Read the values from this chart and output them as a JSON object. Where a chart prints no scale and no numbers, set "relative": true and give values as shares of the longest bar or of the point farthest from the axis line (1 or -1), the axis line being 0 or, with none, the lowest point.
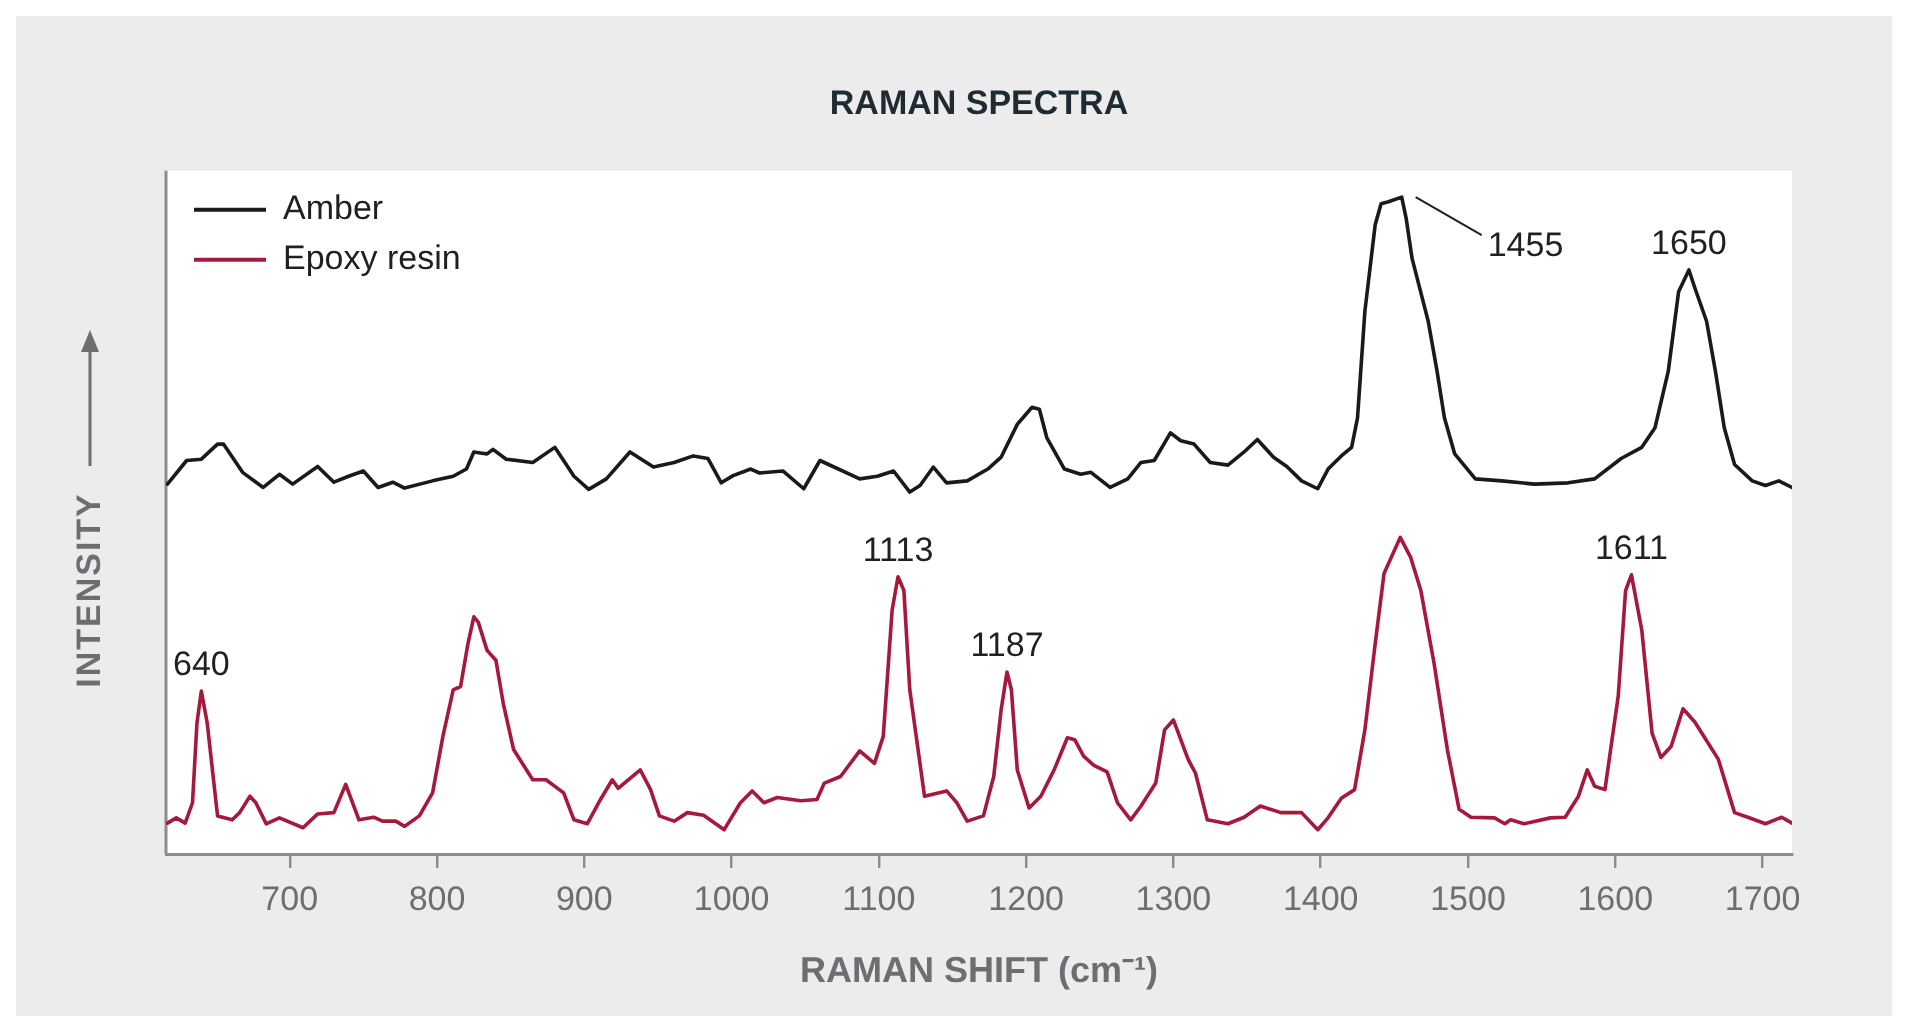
{
  "chart_data": {
    "type": "line",
    "title": "RAMAN SPECTRA",
    "xlabel": "RAMAN SHIFT (cm⁻¹)",
    "ylabel": "INTENSITY",
    "relative": true,
    "xlim": [
      616,
      1720
    ],
    "xticks": [
      700,
      800,
      900,
      1000,
      1100,
      1200,
      1300,
      1400,
      1500,
      1600,
      1700
    ],
    "legend": "top left",
    "marker": "none",
    "line_style": "solid",
    "series": [
      {
        "name": "Amber",
        "color": "#1a1a1a",
        "x": [
          617,
          630,
          640,
          651,
          655,
          668,
          682,
          693,
          702,
          719,
          730,
          740,
          750,
          760,
          770,
          778,
          797,
          811,
          820,
          825,
          834,
          838,
          847,
          865,
          880,
          893,
          903,
          915,
          931,
          947,
          961,
          974,
          984,
          993,
          1001,
          1013,
          1019,
          1035,
          1049,
          1060,
          1087,
          1099,
          1110,
          1121,
          1128,
          1137,
          1146,
          1160,
          1174,
          1183,
          1194,
          1204,
          1209,
          1214,
          1226,
          1237,
          1244,
          1257,
          1269,
          1278,
          1287,
          1298,
          1305,
          1314,
          1325,
          1337,
          1348,
          1357,
          1368,
          1377,
          1387,
          1398,
          1405,
          1414,
          1421,
          1425,
          1430,
          1437,
          1441,
          1446,
          1455,
          1458,
          1462,
          1466,
          1473,
          1479,
          1484,
          1491,
          1505,
          1523,
          1545,
          1568,
          1586,
          1604,
          1618,
          1627,
          1636,
          1643,
          1650,
          1654,
          1662,
          1668,
          1674,
          1681,
          1693,
          1702,
          1711,
          1720
        ],
        "values": [
          0.563,
          0.599,
          0.601,
          0.624,
          0.624,
          0.581,
          0.558,
          0.578,
          0.563,
          0.59,
          0.566,
          0.575,
          0.583,
          0.558,
          0.566,
          0.557,
          0.568,
          0.575,
          0.586,
          0.612,
          0.609,
          0.616,
          0.601,
          0.596,
          0.619,
          0.575,
          0.555,
          0.571,
          0.612,
          0.589,
          0.596,
          0.606,
          0.602,
          0.565,
          0.576,
          0.586,
          0.58,
          0.583,
          0.556,
          0.599,
          0.571,
          0.575,
          0.583,
          0.551,
          0.561,
          0.589,
          0.565,
          0.568,
          0.586,
          0.604,
          0.654,
          0.68,
          0.677,
          0.634,
          0.586,
          0.578,
          0.581,
          0.558,
          0.571,
          0.596,
          0.599,
          0.641,
          0.629,
          0.624,
          0.596,
          0.592,
          0.612,
          0.631,
          0.604,
          0.59,
          0.568,
          0.556,
          0.586,
          0.606,
          0.619,
          0.664,
          0.826,
          0.958,
          0.99,
          0.993,
          1,
          0.968,
          0.907,
          0.872,
          0.811,
          0.735,
          0.664,
          0.609,
          0.571,
          0.568,
          0.563,
          0.565,
          0.571,
          0.602,
          0.619,
          0.649,
          0.735,
          0.856,
          0.889,
          0.862,
          0.811,
          0.735,
          0.649,
          0.593,
          0.568,
          0.561,
          0.568,
          0.558
        ]
      },
      {
        "name": "Epoxy resin",
        "color": "#a6193c",
        "x": [
          617,
          623,
          629,
          634,
          637,
          640,
          644,
          651,
          661,
          666,
          673,
          677,
          684,
          693,
          709,
          719,
          730,
          738,
          747,
          757,
          763,
          772,
          778,
          788,
          797,
          804,
          811,
          816,
          821,
          825,
          828,
          834,
          840,
          845,
          852,
          865,
          874,
          886,
          893,
          902,
          911,
          919,
          923,
          938,
          945,
          951,
          961,
          970,
          981,
          995,
          1006,
          1014,
          1022,
          1031,
          1047,
          1058,
          1063,
          1074,
          1087,
          1097,
          1103,
          1109,
          1113,
          1117,
          1121,
          1131,
          1146,
          1153,
          1160,
          1171,
          1178,
          1183,
          1187,
          1190,
          1194,
          1202,
          1210,
          1219,
          1228,
          1233,
          1239,
          1246,
          1255,
          1262,
          1271,
          1278,
          1288,
          1294,
          1300,
          1310,
          1315,
          1323,
          1337,
          1348,
          1359,
          1373,
          1387,
          1398,
          1405,
          1414,
          1423,
          1430,
          1437,
          1443,
          1454,
          1461,
          1468,
          1477,
          1486,
          1494,
          1502,
          1518,
          1525,
          1529,
          1538,
          1556,
          1566,
          1575,
          1581,
          1586,
          1593,
          1602,
          1607,
          1611,
          1618,
          1625,
          1631,
          1638,
          1646,
          1654,
          1663,
          1670,
          1681,
          1690,
          1702,
          1713,
          1720
        ],
        "values": [
          0.047,
          0.055,
          0.047,
          0.078,
          0.199,
          0.248,
          0.199,
          0.058,
          0.052,
          0.063,
          0.088,
          0.078,
          0.046,
          0.055,
          0.04,
          0.061,
          0.063,
          0.106,
          0.052,
          0.056,
          0.05,
          0.05,
          0.042,
          0.058,
          0.093,
          0.179,
          0.25,
          0.255,
          0.32,
          0.361,
          0.353,
          0.31,
          0.295,
          0.229,
          0.159,
          0.113,
          0.113,
          0.093,
          0.052,
          0.046,
          0.083,
          0.113,
          0.1,
          0.128,
          0.098,
          0.058,
          0.05,
          0.063,
          0.059,
          0.037,
          0.078,
          0.096,
          0.078,
          0.086,
          0.081,
          0.083,
          0.108,
          0.118,
          0.157,
          0.138,
          0.179,
          0.371,
          0.422,
          0.401,
          0.25,
          0.088,
          0.096,
          0.078,
          0.05,
          0.058,
          0.118,
          0.219,
          0.277,
          0.25,
          0.128,
          0.07,
          0.088,
          0.128,
          0.177,
          0.174,
          0.149,
          0.135,
          0.125,
          0.078,
          0.052,
          0.073,
          0.108,
          0.189,
          0.204,
          0.144,
          0.123,
          0.052,
          0.046,
          0.056,
          0.073,
          0.063,
          0.063,
          0.037,
          0.055,
          0.085,
          0.098,
          0.189,
          0.32,
          0.427,
          0.482,
          0.452,
          0.401,
          0.29,
          0.159,
          0.068,
          0.056,
          0.055,
          0.046,
          0.052,
          0.046,
          0.055,
          0.056,
          0.088,
          0.128,
          0.103,
          0.098,
          0.24,
          0.401,
          0.425,
          0.341,
          0.184,
          0.147,
          0.164,
          0.221,
          0.201,
          0.169,
          0.144,
          0.063,
          0.056,
          0.046,
          0.056,
          0.047
        ]
      }
    ],
    "annotations": [
      {
        "text": "1455",
        "x": 1455,
        "y": 1
      },
      {
        "text": "1650",
        "x": 1650,
        "y": 0.889
      },
      {
        "text": "640",
        "x": 640,
        "y": 0.248
      },
      {
        "text": "1113",
        "x": 1113,
        "y": 0.422
      },
      {
        "text": "1187",
        "x": 1187,
        "y": 0.277
      },
      {
        "text": "1611",
        "x": 1611,
        "y": 0.425
      }
    ]
  }
}
